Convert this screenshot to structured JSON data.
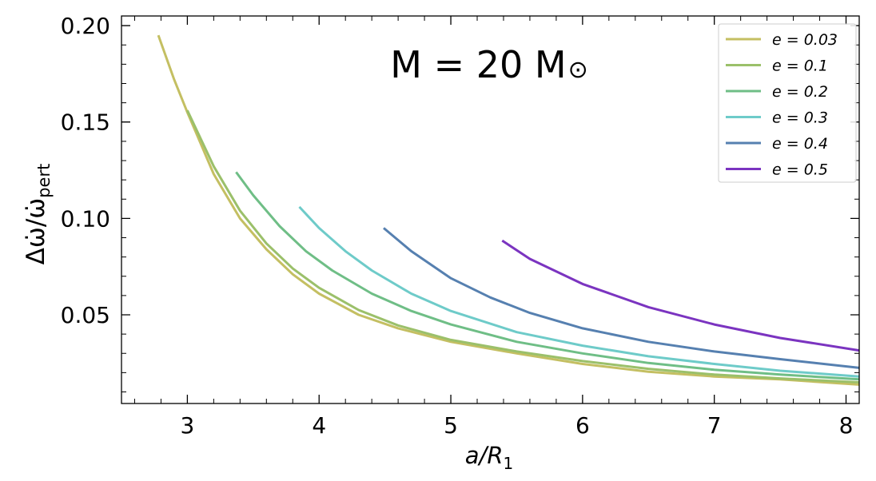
{
  "chart_data": {
    "type": "line",
    "annotation": "M = 20 M",
    "annotation_symbol": "⊙",
    "xlabel_main": "a/R",
    "xlabel_sub": "1",
    "ylabel_main": "Δω̇/ω̇",
    "ylabel_sub": "pert",
    "xlim": [
      2.5,
      8.1
    ],
    "ylim": [
      0.004,
      0.205
    ],
    "xticks": [
      3,
      4,
      5,
      6,
      7,
      8
    ],
    "xtick_labels": [
      "3",
      "4",
      "5",
      "6",
      "7",
      "8"
    ],
    "yticks": [
      0.05,
      0.1,
      0.15,
      0.2
    ],
    "ytick_labels": [
      "0.05",
      "0.10",
      "0.15",
      "0.20"
    ],
    "grid": false,
    "legend_position": "top-right",
    "series": [
      {
        "name": "e = 0.03",
        "color": "#c4bf62",
        "x": [
          2.78,
          2.9,
          3.0,
          3.2,
          3.4,
          3.6,
          3.8,
          4.0,
          4.3,
          4.6,
          5.0,
          5.5,
          6.0,
          6.5,
          7.0,
          7.5,
          8.1
        ],
        "y": [
          0.195,
          0.172,
          0.155,
          0.123,
          0.1,
          0.084,
          0.071,
          0.061,
          0.05,
          0.043,
          0.036,
          0.03,
          0.0245,
          0.0205,
          0.018,
          0.0165,
          0.0138
        ]
      },
      {
        "name": "e = 0.1",
        "color": "#9bc06a",
        "x": [
          3.0,
          3.2,
          3.4,
          3.6,
          3.8,
          4.0,
          4.3,
          4.6,
          5.0,
          5.5,
          6.0,
          6.5,
          7.0,
          7.5,
          8.1
        ],
        "y": [
          0.156,
          0.127,
          0.104,
          0.087,
          0.074,
          0.064,
          0.0525,
          0.0445,
          0.037,
          0.031,
          0.026,
          0.022,
          0.019,
          0.017,
          0.015
        ]
      },
      {
        "name": "e = 0.2",
        "color": "#6fbe86",
        "x": [
          3.37,
          3.5,
          3.7,
          3.9,
          4.1,
          4.4,
          4.7,
          5.0,
          5.5,
          6.0,
          6.5,
          7.0,
          7.5,
          8.1
        ],
        "y": [
          0.124,
          0.112,
          0.096,
          0.083,
          0.073,
          0.061,
          0.052,
          0.045,
          0.036,
          0.03,
          0.025,
          0.0215,
          0.019,
          0.0165
        ]
      },
      {
        "name": "e = 0.3",
        "color": "#6ecbc9",
        "x": [
          3.85,
          4.0,
          4.2,
          4.4,
          4.7,
          5.0,
          5.5,
          6.0,
          6.5,
          7.0,
          7.5,
          8.1
        ],
        "y": [
          0.106,
          0.095,
          0.083,
          0.073,
          0.061,
          0.052,
          0.041,
          0.034,
          0.0285,
          0.0245,
          0.021,
          0.018
        ]
      },
      {
        "name": "e = 0.4",
        "color": "#5680b0",
        "x": [
          4.49,
          4.7,
          5.0,
          5.3,
          5.6,
          6.0,
          6.5,
          7.0,
          7.5,
          8.1
        ],
        "y": [
          0.095,
          0.083,
          0.069,
          0.059,
          0.051,
          0.043,
          0.036,
          0.031,
          0.027,
          0.0225
        ]
      },
      {
        "name": "e = 0.5",
        "color": "#7b34c0",
        "x": [
          5.39,
          5.6,
          6.0,
          6.5,
          7.0,
          7.5,
          8.1
        ],
        "y": [
          0.0885,
          0.079,
          0.066,
          0.054,
          0.045,
          0.038,
          0.0315
        ]
      }
    ]
  }
}
